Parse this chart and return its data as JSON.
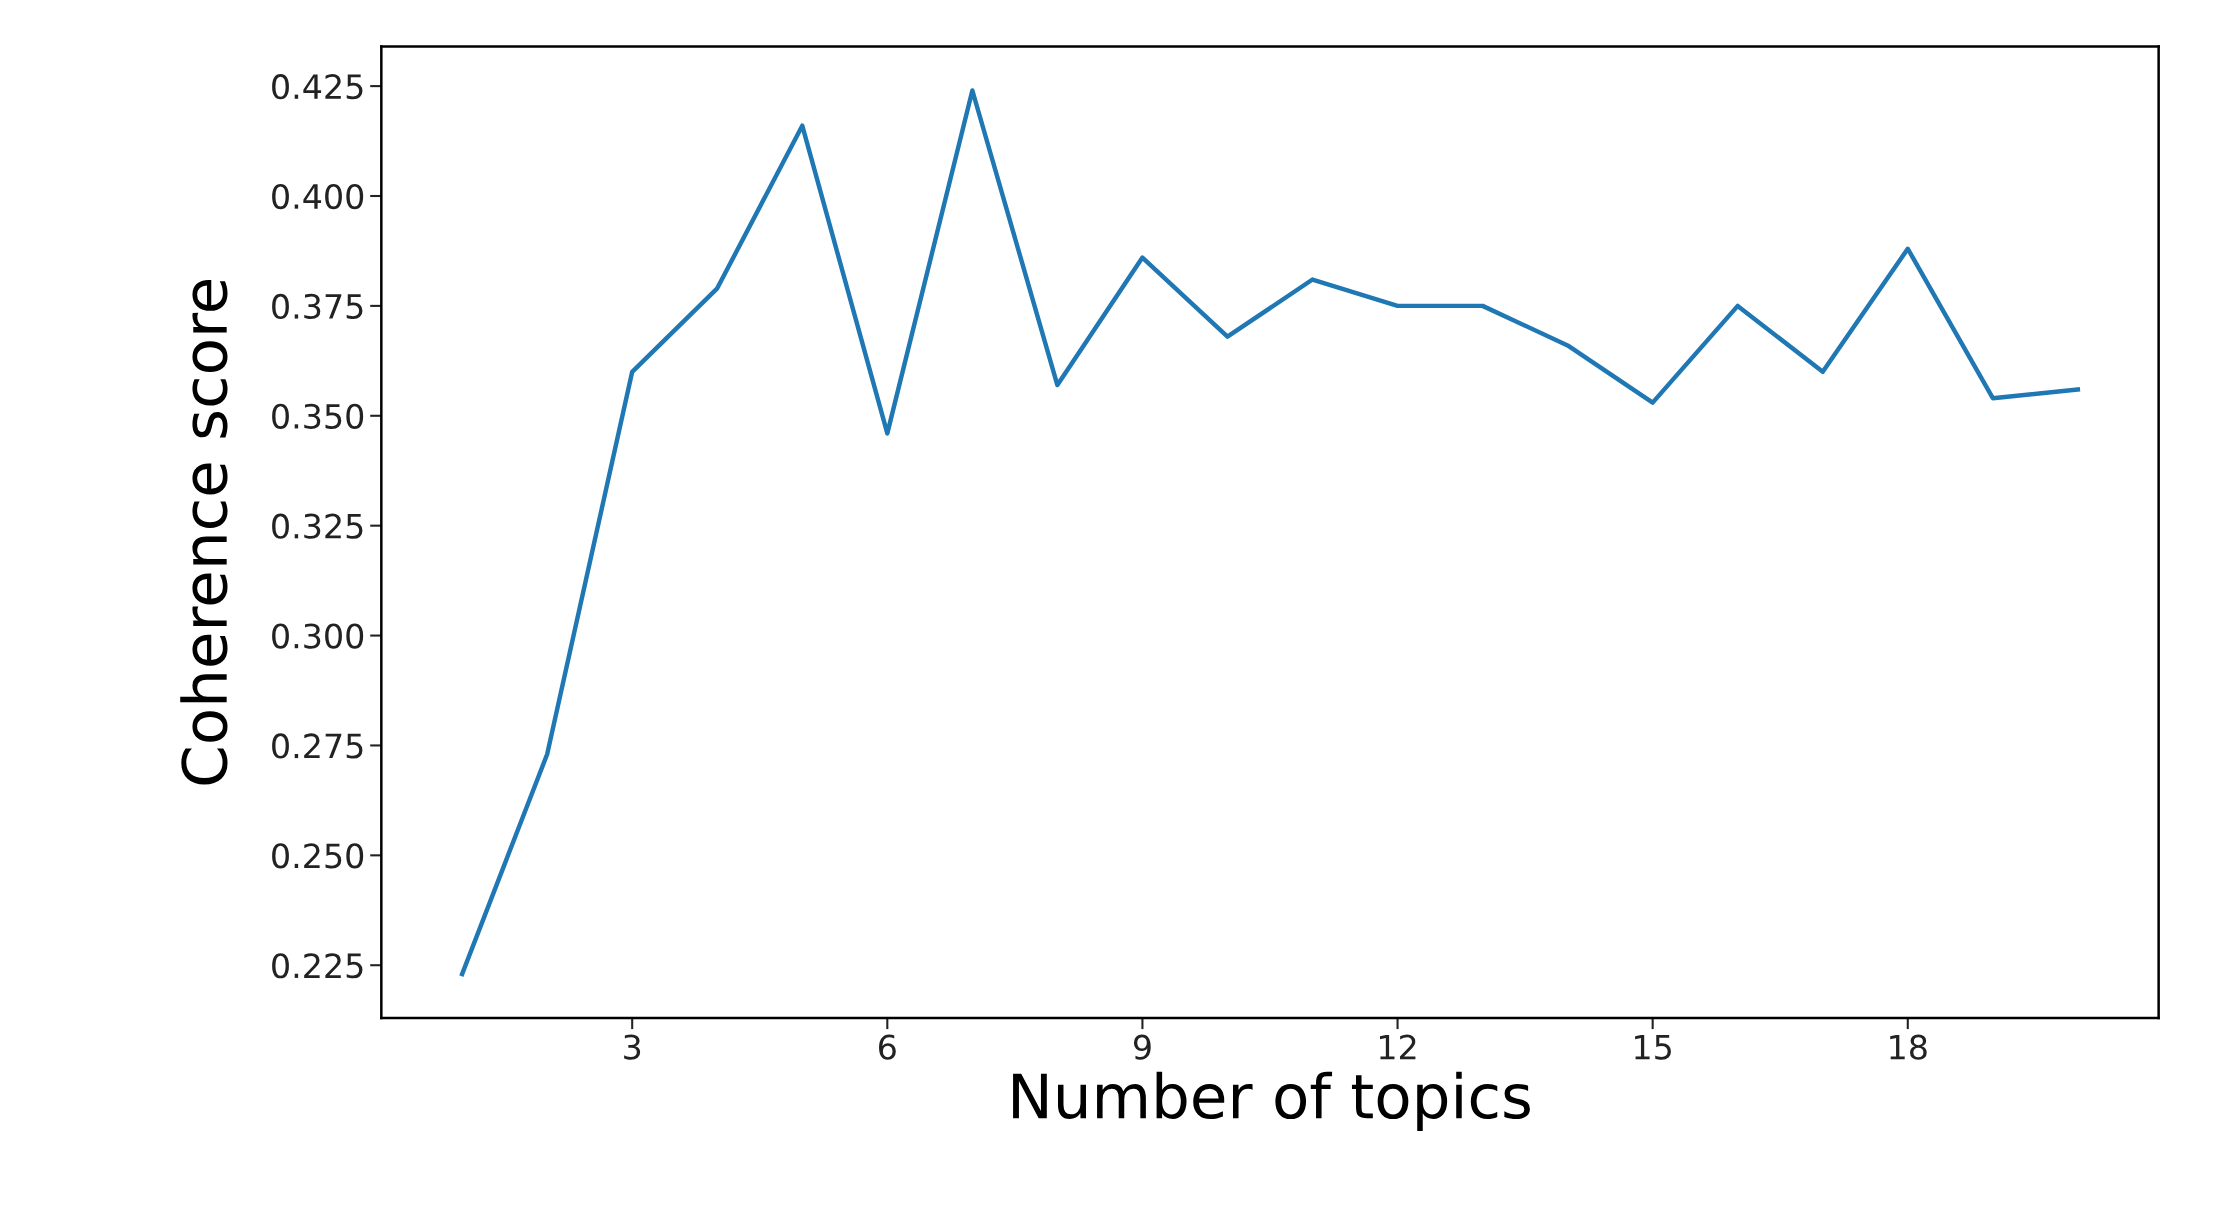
{
  "chart_data": {
    "type": "line",
    "xlabel": "Number of topics",
    "ylabel": "Coherence score",
    "x": [
      1,
      2,
      3,
      4,
      5,
      6,
      7,
      8,
      9,
      10,
      11,
      12,
      13,
      14,
      15,
      16,
      17,
      18,
      19,
      20
    ],
    "series": [
      {
        "color": "#1f77b4",
        "values": [
          0.223,
          0.273,
          0.36,
          0.379,
          0.416,
          0.346,
          0.424,
          0.357,
          0.386,
          0.368,
          0.381,
          0.375,
          0.375,
          0.366,
          0.353,
          0.375,
          0.36,
          0.388,
          0.354,
          0.356
        ]
      }
    ],
    "xlim": [
      0.05,
      20.95
    ],
    "xticks": [
      3,
      6,
      9,
      12,
      15,
      18
    ],
    "ylim": [
      0.213,
      0.434
    ],
    "yticks": [
      {
        "value": 0.225,
        "label": "0.225"
      },
      {
        "value": 0.25,
        "label": "0.250"
      },
      {
        "value": 0.275,
        "label": "0.275"
      },
      {
        "value": 0.3,
        "label": "0.300"
      },
      {
        "value": 0.325,
        "label": "0.325"
      },
      {
        "value": 0.35,
        "label": "0.350"
      },
      {
        "value": 0.375,
        "label": "0.375"
      },
      {
        "value": 0.4,
        "label": "0.400"
      },
      {
        "value": 0.425,
        "label": "0.425"
      }
    ],
    "marker": "none",
    "line_style": "solid"
  }
}
